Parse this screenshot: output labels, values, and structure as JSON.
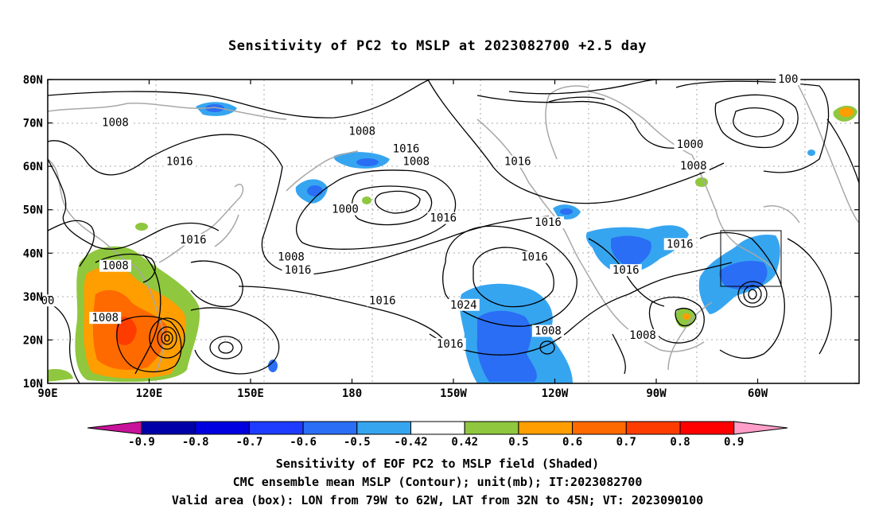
{
  "title": "Sensitivity of PC2 to MSLP at 2023082700 +2.5 day",
  "map": {
    "lat_labels": [
      "80N",
      "70N",
      "60N",
      "50N",
      "40N",
      "30N",
      "20N",
      "10N"
    ],
    "lon_labels": [
      "90E",
      "120E",
      "150E",
      "180",
      "150W",
      "120W",
      "90W",
      "60W"
    ],
    "contour_labels": [
      {
        "text": "1008",
        "lon": 110,
        "lat": 70
      },
      {
        "text": "1008",
        "lon": -177,
        "lat": 68
      },
      {
        "text": "1016",
        "lon": -164,
        "lat": 64
      },
      {
        "text": "1008",
        "lon": -161,
        "lat": 61
      },
      {
        "text": "1016",
        "lon": -131,
        "lat": 61
      },
      {
        "text": "1000",
        "lon": -80,
        "lat": 65
      },
      {
        "text": "1008",
        "lon": -79,
        "lat": 60
      },
      {
        "text": "1016",
        "lon": 129,
        "lat": 61
      },
      {
        "text": "1000",
        "lon": 178,
        "lat": 50
      },
      {
        "text": "1016",
        "lon": -153,
        "lat": 48
      },
      {
        "text": "1016",
        "lon": -122,
        "lat": 47
      },
      {
        "text": "1016",
        "lon": 133,
        "lat": 43
      },
      {
        "text": "1016",
        "lon": -126,
        "lat": 39
      },
      {
        "text": "1016",
        "lon": -99,
        "lat": 36
      },
      {
        "text": "1016",
        "lon": -83,
        "lat": 42
      },
      {
        "text": "1008",
        "lon": 110,
        "lat": 37
      },
      {
        "text": "1008",
        "lon": 162,
        "lat": 39
      },
      {
        "text": "1016",
        "lon": 164,
        "lat": 36
      },
      {
        "text": "1016",
        "lon": -171,
        "lat": 29
      },
      {
        "text": "1024",
        "lon": -147,
        "lat": 28
      },
      {
        "text": "1008",
        "lon": 107,
        "lat": 25
      },
      {
        "text": "1016",
        "lon": -151,
        "lat": 19
      },
      {
        "text": "1008",
        "lon": -122,
        "lat": 22
      },
      {
        "text": "1008",
        "lon": -94,
        "lat": 21
      },
      {
        "text": "100",
        "lon": -51,
        "lat": 80
      },
      {
        "text": "00",
        "lon": 90,
        "lat": 29
      }
    ],
    "valid_box": {
      "lon_from": -79,
      "lon_to": -62,
      "lat_from": 32,
      "lat_to": 45
    }
  },
  "colorbar": {
    "labels": [
      "-0.9",
      "-0.8",
      "-0.7",
      "-0.6",
      "-0.5",
      "-0.42",
      "0.42",
      "0.5",
      "0.6",
      "0.7",
      "0.8",
      "0.9"
    ],
    "colors": [
      "#0000a8",
      "#0000e0",
      "#1e3cff",
      "#2a6ef5",
      "#36a5f0",
      "#ffffff",
      "#8fc73e",
      "#ff9e00",
      "#ff6a00",
      "#ff3c00",
      "#ff0000"
    ],
    "low_end_color": "#c8129a",
    "high_end_color": "#ff9ec8"
  },
  "captions": {
    "line1": "Sensitivity of EOF PC2 to MSLP field (Shaded)",
    "line2": "CMC ensemble mean MSLP (Contour); unit(mb); IT:2023082700",
    "line3": "Valid area (box): LON from 79W to 62W, LAT from 32N to 45N; VT: 2023090100"
  }
}
